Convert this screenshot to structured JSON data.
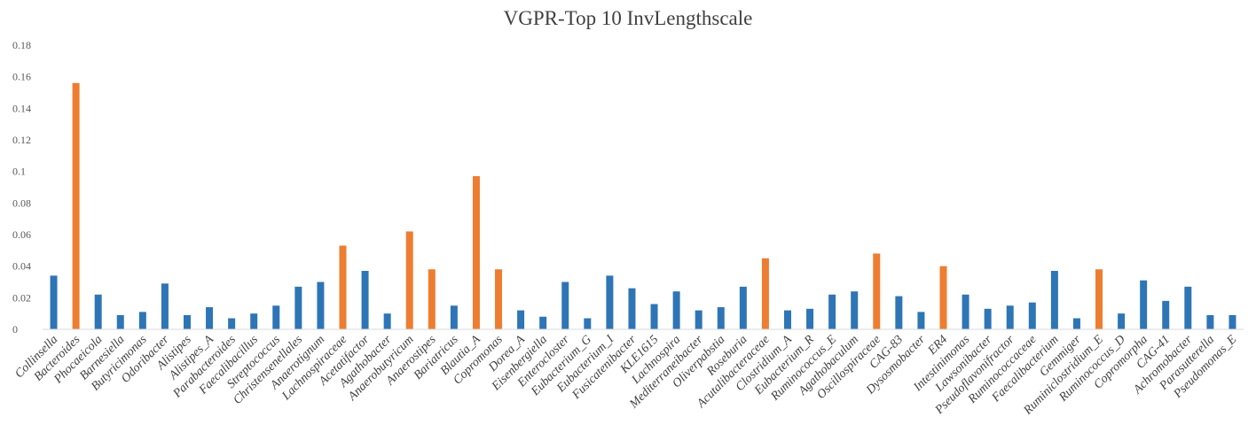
{
  "chart_data": {
    "type": "bar",
    "title": "VGPR-Top 10 InvLengthscale",
    "xlabel": "",
    "ylabel": "",
    "ylim": [
      0,
      0.18
    ],
    "yticks": [
      0,
      0.02,
      0.04,
      0.06,
      0.08,
      0.1,
      0.12,
      0.14,
      0.16,
      0.18
    ],
    "ytick_labels": [
      "0",
      "0.02",
      "0.04",
      "0.06",
      "0.08",
      "0.1",
      "0.12",
      "0.14",
      "0.16",
      "0.18"
    ],
    "grid": false,
    "colors": {
      "default": "#2E75B6",
      "highlight": "#ED7D31",
      "axis": "#D9D9D9"
    },
    "categories": [
      "Collinsella",
      "Bacteroides",
      "Phocaeicola",
      "Barnesiella",
      "Butyricimonas",
      "Odoribacter",
      "Alistipes",
      "Alistipes_A",
      "Parabacteroides",
      "Faecalibacillus",
      "Streptococcus",
      "Christensenellales",
      "Anaerotignum",
      "Lachnospiraceae",
      "Acetatifactor",
      "Agathobacter",
      "Anaerobutyricum",
      "Anaerostipes",
      "Bariatricus",
      "Blautia_A",
      "Copromonas",
      "Dorea_A",
      "Eisenbergiella",
      "Enterocloster",
      "Eubacterium_G",
      "Eubacterium_I",
      "Fusicatenibacter",
      "KLE1615",
      "Lachnospira",
      "Mediterraneibacter",
      "Oliverpabstia",
      "Roseburia",
      "Acutalibacteraceae",
      "Clostridium_A",
      "Eubacterium_R",
      "Ruminococcus_E",
      "Agathobaculum",
      "Oscillospiraceae",
      "CAG-83",
      "Dysosmobacter",
      "ER4",
      "Intestinimonas",
      "Lawsonibacter",
      "Pseudoflavonifractor",
      "Ruminococcaceae",
      "Faecalibacterium",
      "Gemmiger",
      "Ruminiclostridium_E",
      "Ruminococcus_D",
      "Copromorpha",
      "CAG-41",
      "Achromobacter",
      "Parasutterella",
      "Pseudomonas_E"
    ],
    "values": [
      0.034,
      0.156,
      0.022,
      0.009,
      0.011,
      0.029,
      0.009,
      0.014,
      0.007,
      0.01,
      0.015,
      0.027,
      0.03,
      0.053,
      0.037,
      0.01,
      0.062,
      0.038,
      0.015,
      0.097,
      0.038,
      0.012,
      0.008,
      0.03,
      0.007,
      0.034,
      0.026,
      0.016,
      0.024,
      0.012,
      0.014,
      0.027,
      0.045,
      0.012,
      0.013,
      0.022,
      0.024,
      0.048,
      0.021,
      0.011,
      0.04,
      0.022,
      0.013,
      0.015,
      0.017,
      0.037,
      0.007,
      0.038,
      0.01,
      0.031,
      0.018,
      0.027,
      0.009,
      0.009
    ],
    "highlighted": [
      "Bacteroides",
      "Lachnospiraceae",
      "Anaerobutyricum",
      "Anaerostipes",
      "Blautia_A",
      "Copromonas",
      "Acutalibacteraceae",
      "Oscillospiraceae",
      "ER4",
      "Ruminiclostridium_E"
    ]
  }
}
